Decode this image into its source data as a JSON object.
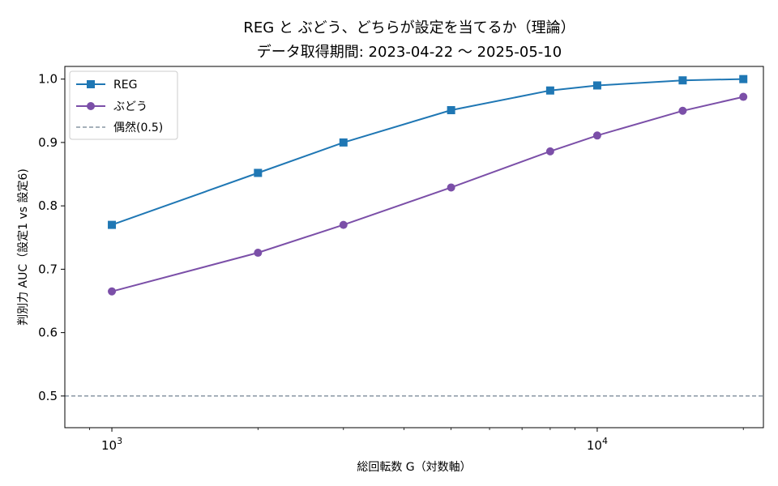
{
  "chart_data": {
    "type": "line",
    "title": "REG と ぶどう、どちらが設定を当てるか（理論）",
    "subtitle": "データ取得期間: 2023-04-22 〜 2025-05-10",
    "xlabel": "総回転数 G（対数軸）",
    "ylabel": "判別力 AUC（設定1 vs 設定6)",
    "x_scale": "log",
    "xlim": [
      800,
      22000
    ],
    "ylim": [
      0.45,
      1.02
    ],
    "x_ticks": [
      {
        "value": 1000,
        "base": "10",
        "exp": "3"
      },
      {
        "value": 10000,
        "base": "10",
        "exp": "4"
      }
    ],
    "y_ticks": [
      {
        "value": 0.5,
        "label": "0.5"
      },
      {
        "value": 0.6,
        "label": "0.6"
      },
      {
        "value": 0.7,
        "label": "0.7"
      },
      {
        "value": 0.8,
        "label": "0.8"
      },
      {
        "value": 0.9,
        "label": "0.9"
      },
      {
        "value": 1.0,
        "label": "1.0"
      }
    ],
    "x": [
      1000,
      2000,
      3000,
      5000,
      8000,
      10000,
      15000,
      20000
    ],
    "series": [
      {
        "name": "REG",
        "color": "#1f77b4",
        "marker": "square",
        "values": [
          0.77,
          0.852,
          0.9,
          0.951,
          0.982,
          0.99,
          0.998,
          1.0
        ]
      },
      {
        "name": "ぶどう",
        "color": "#7b4fa8",
        "marker": "circle",
        "values": [
          0.665,
          0.726,
          0.77,
          0.829,
          0.886,
          0.911,
          0.95,
          0.972
        ]
      }
    ],
    "reference_line": {
      "name": "偶然(0.5)",
      "value": 0.5,
      "color": "#708090",
      "style": "dashed"
    },
    "grid": false,
    "legend_position": "top-left"
  }
}
